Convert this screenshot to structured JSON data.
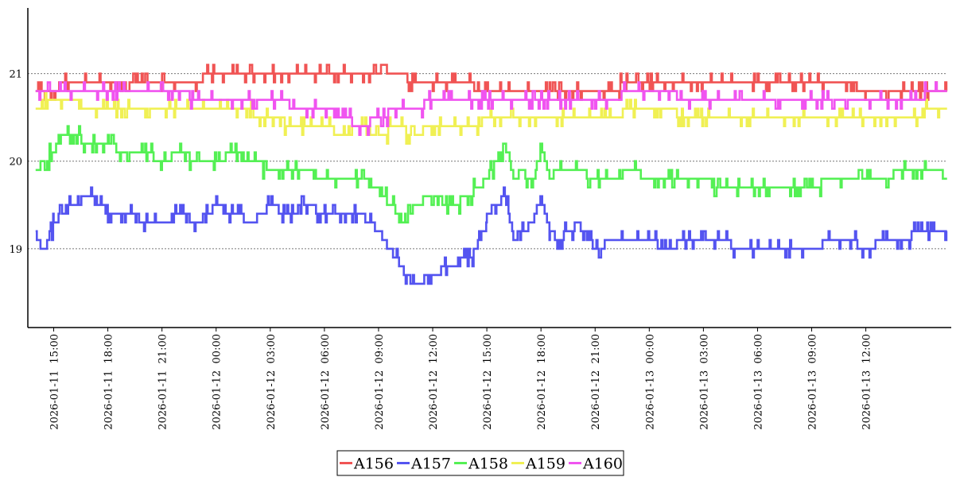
{
  "chart_data": {
    "type": "line",
    "title": "",
    "xlabel": "",
    "ylabel": "",
    "ylim": [
      18.1,
      21.75
    ],
    "xlim": [
      "2026-01-11 13:34",
      "2026-01-13 16:44"
    ],
    "y_ticks": [
      19,
      20,
      21
    ],
    "y_tick_labels": [
      "19",
      "20",
      "21"
    ],
    "x_ticks": [
      "2026-01-11 15:00",
      "2026-01-11 18:00",
      "2026-01-11 21:00",
      "2026-01-12 00:00",
      "2026-01-12 03:00",
      "2026-01-12 06:00",
      "2026-01-12 09:00",
      "2026-01-12 12:00",
      "2026-01-12 15:00",
      "2026-01-12 18:00",
      "2026-01-12 21:00",
      "2026-01-13 00:00",
      "2026-01-13 03:00",
      "2026-01-13 06:00",
      "2026-01-13 09:00",
      "2026-01-13 12:00"
    ],
    "x_tick_labels": [
      "2026-01-11  15:00",
      "2026-01-11  18:00",
      "2026-01-11  21:00",
      "2026-01-12  00:00",
      "2026-01-12  03:00",
      "2026-01-12  06:00",
      "2026-01-12  09:00",
      "2026-01-12  12:00",
      "2026-01-12  15:00",
      "2026-01-12  18:00",
      "2026-01-12  21:00",
      "2026-01-13  00:00",
      "2026-01-13  03:00",
      "2026-01-13  06:00",
      "2026-01-13  09:00",
      "2026-01-13  12:00"
    ],
    "grid": "horizontal dotted at y ticks",
    "legend": "bottom-center",
    "series": [
      {
        "name": "A156",
        "color": "#f05454",
        "x": [
          "2026-01-11 14:00",
          "2026-01-11 14:30",
          "2026-01-11 16:00",
          "2026-01-11 17:00",
          "2026-01-11 20:00",
          "2026-01-11 23:00",
          "2026-01-11 23:30",
          "2026-01-12 00:30",
          "2026-01-12 01:00",
          "2026-01-12 06:00",
          "2026-01-12 09:00",
          "2026-01-12 10:00",
          "2026-01-12 11:00",
          "2026-01-12 12:00",
          "2026-01-12 13:30",
          "2026-01-12 15:00",
          "2026-01-12 18:00",
          "2026-01-12 21:00",
          "2026-01-12 23:45",
          "2026-01-13 00:30",
          "2026-01-13 03:00",
          "2026-01-13 06:00",
          "2026-01-13 09:00",
          "2026-01-13 10:30",
          "2026-01-13 12:00",
          "2026-01-13 14:00",
          "2026-01-13 16:30"
        ],
        "y": [
          20.8,
          20.8,
          20.9,
          20.9,
          20.9,
          20.9,
          21.0,
          21.0,
          21.0,
          21.0,
          21.0,
          21.0,
          20.9,
          20.9,
          20.9,
          20.8,
          20.8,
          20.8,
          20.9,
          20.9,
          20.9,
          20.9,
          20.9,
          20.9,
          20.8,
          20.8,
          20.8
        ]
      },
      {
        "name": "A157",
        "color": "#5454f0",
        "x": [
          "2026-01-11 14:00",
          "2026-01-11 14:30",
          "2026-01-11 15:00",
          "2026-01-11 16:00",
          "2026-01-11 17:00",
          "2026-01-11 18:00",
          "2026-01-11 19:00",
          "2026-01-11 20:00",
          "2026-01-11 21:00",
          "2026-01-11 22:00",
          "2026-01-11 23:00",
          "2026-01-12 00:00",
          "2026-01-12 01:00",
          "2026-01-12 02:00",
          "2026-01-12 03:00",
          "2026-01-12 04:00",
          "2026-01-12 05:00",
          "2026-01-12 06:00",
          "2026-01-12 07:00",
          "2026-01-12 08:00",
          "2026-01-12 09:00",
          "2026-01-12 10:00",
          "2026-01-12 10:30",
          "2026-01-12 11:00",
          "2026-01-12 12:00",
          "2026-01-12 13:00",
          "2026-01-12 14:00",
          "2026-01-12 14:30",
          "2026-01-12 15:00",
          "2026-01-12 16:00",
          "2026-01-12 16:30",
          "2026-01-12 17:30",
          "2026-01-12 18:00",
          "2026-01-12 18:30",
          "2026-01-12 19:00",
          "2026-01-12 20:00",
          "2026-01-12 21:00",
          "2026-01-12 22:00",
          "2026-01-12 23:00",
          "2026-01-13 00:00",
          "2026-01-13 01:00",
          "2026-01-13 02:00",
          "2026-01-13 03:00",
          "2026-01-13 04:00",
          "2026-01-13 05:00",
          "2026-01-13 06:00",
          "2026-01-13 07:00",
          "2026-01-13 08:00",
          "2026-01-13 09:00",
          "2026-01-13 10:00",
          "2026-01-13 11:00",
          "2026-01-13 12:00",
          "2026-01-13 13:00",
          "2026-01-13 14:00",
          "2026-01-13 15:00",
          "2026-01-13 16:00",
          "2026-01-13 16:30"
        ],
        "y": [
          19.1,
          19.0,
          19.3,
          19.5,
          19.6,
          19.4,
          19.4,
          19.3,
          19.3,
          19.4,
          19.3,
          19.5,
          19.4,
          19.3,
          19.5,
          19.4,
          19.5,
          19.4,
          19.4,
          19.4,
          19.2,
          18.9,
          18.7,
          18.6,
          18.7,
          18.8,
          18.9,
          19.0,
          19.4,
          19.6,
          19.1,
          19.3,
          19.6,
          19.2,
          19.1,
          19.3,
          19.0,
          19.1,
          19.1,
          19.1,
          19.0,
          19.1,
          19.1,
          19.1,
          19.0,
          19.0,
          19.0,
          19.0,
          19.0,
          19.1,
          19.1,
          19.0,
          19.1,
          19.1,
          19.2,
          19.2,
          19.2
        ]
      },
      {
        "name": "A158",
        "color": "#54f054",
        "x": [
          "2026-01-11 14:00",
          "2026-01-11 14:30",
          "2026-01-11 15:00",
          "2026-01-11 15:30",
          "2026-01-11 16:00",
          "2026-01-11 17:00",
          "2026-01-11 18:00",
          "2026-01-11 19:00",
          "2026-01-11 20:00",
          "2026-01-11 21:00",
          "2026-01-11 22:00",
          "2026-01-11 23:00",
          "2026-01-12 00:00",
          "2026-01-12 01:00",
          "2026-01-12 02:00",
          "2026-01-12 03:00",
          "2026-01-12 04:00",
          "2026-01-12 05:00",
          "2026-01-12 06:00",
          "2026-01-12 07:00",
          "2026-01-12 08:00",
          "2026-01-12 09:00",
          "2026-01-12 10:00",
          "2026-01-12 10:30",
          "2026-01-12 11:00",
          "2026-01-12 12:00",
          "2026-01-12 13:00",
          "2026-01-12 14:00",
          "2026-01-12 15:00",
          "2026-01-12 15:30",
          "2026-01-12 16:00",
          "2026-01-12 16:30",
          "2026-01-12 17:00",
          "2026-01-12 17:30",
          "2026-01-12 18:00",
          "2026-01-12 18:30",
          "2026-01-12 19:00",
          "2026-01-12 20:00",
          "2026-01-12 21:00",
          "2026-01-12 22:00",
          "2026-01-12 23:00",
          "2026-01-13 00:00",
          "2026-01-13 01:00",
          "2026-01-13 02:00",
          "2026-01-13 03:00",
          "2026-01-13 04:00",
          "2026-01-13 05:00",
          "2026-01-13 06:00",
          "2026-01-13 07:00",
          "2026-01-13 08:00",
          "2026-01-13 09:00",
          "2026-01-13 10:00",
          "2026-01-13 11:00",
          "2026-01-13 12:00",
          "2026-01-13 13:00",
          "2026-01-13 14:00",
          "2026-01-13 15:00",
          "2026-01-13 16:00",
          "2026-01-13 16:30"
        ],
        "y": [
          19.9,
          20.0,
          20.1,
          20.3,
          20.3,
          20.2,
          20.2,
          20.1,
          20.1,
          20.0,
          20.1,
          20.0,
          20.0,
          20.1,
          20.0,
          19.9,
          19.9,
          19.9,
          19.8,
          19.8,
          19.8,
          19.7,
          19.4,
          19.3,
          19.5,
          19.6,
          19.5,
          19.6,
          19.8,
          20.0,
          20.2,
          19.8,
          19.9,
          19.7,
          20.2,
          19.8,
          19.9,
          19.9,
          19.8,
          19.8,
          19.9,
          19.8,
          19.8,
          19.8,
          19.8,
          19.7,
          19.7,
          19.7,
          19.7,
          19.7,
          19.7,
          19.8,
          19.8,
          19.8,
          19.8,
          19.9,
          19.9,
          19.9,
          19.8
        ]
      },
      {
        "name": "A159",
        "color": "#f0f054",
        "x": [
          "2026-01-11 14:00",
          "2026-01-11 15:00",
          "2026-01-11 18:00",
          "2026-01-11 21:00",
          "2026-01-12 00:00",
          "2026-01-12 01:00",
          "2026-01-12 03:00",
          "2026-01-12 04:30",
          "2026-01-12 06:00",
          "2026-01-12 07:00",
          "2026-01-12 08:00",
          "2026-01-12 09:00",
          "2026-01-12 10:00",
          "2026-01-12 11:00",
          "2026-01-12 12:00",
          "2026-01-12 13:00",
          "2026-01-12 14:00",
          "2026-01-12 15:00",
          "2026-01-12 18:00",
          "2026-01-12 21:00",
          "2026-01-13 00:00",
          "2026-01-13 03:00",
          "2026-01-13 04:00",
          "2026-01-13 06:00",
          "2026-01-13 09:00",
          "2026-01-13 12:00",
          "2026-01-13 14:00",
          "2026-01-13 16:30"
        ],
        "y": [
          20.6,
          20.7,
          20.6,
          20.6,
          20.6,
          20.6,
          20.5,
          20.4,
          20.4,
          20.3,
          20.4,
          20.3,
          20.4,
          20.3,
          20.4,
          20.4,
          20.4,
          20.5,
          20.5,
          20.5,
          20.6,
          20.5,
          20.5,
          20.5,
          20.5,
          20.5,
          20.5,
          20.6
        ]
      },
      {
        "name": "A160",
        "color": "#f054f0",
        "x": [
          "2026-01-11 14:00",
          "2026-01-11 15:00",
          "2026-01-11 18:00",
          "2026-01-11 21:00",
          "2026-01-12 00:00",
          "2026-01-12 01:00",
          "2026-01-12 02:00",
          "2026-01-12 03:00",
          "2026-01-12 05:00",
          "2026-01-12 06:00",
          "2026-01-12 07:00",
          "2026-01-12 08:00",
          "2026-01-12 09:00",
          "2026-01-12 10:00",
          "2026-01-12 11:00",
          "2026-01-12 12:00",
          "2026-01-12 15:00",
          "2026-01-12 18:00",
          "2026-01-12 21:00",
          "2026-01-13 00:00",
          "2026-01-13 03:00",
          "2026-01-13 05:00",
          "2026-01-13 06:00",
          "2026-01-13 09:00",
          "2026-01-13 12:00",
          "2026-01-13 14:00",
          "2026-01-13 16:30"
        ],
        "y": [
          20.8,
          20.8,
          20.8,
          20.8,
          20.7,
          20.7,
          20.7,
          20.7,
          20.6,
          20.6,
          20.5,
          20.4,
          20.5,
          20.6,
          20.6,
          20.7,
          20.7,
          20.7,
          20.7,
          20.8,
          20.7,
          20.7,
          20.7,
          20.7,
          20.7,
          20.7,
          20.8
        ]
      }
    ]
  }
}
